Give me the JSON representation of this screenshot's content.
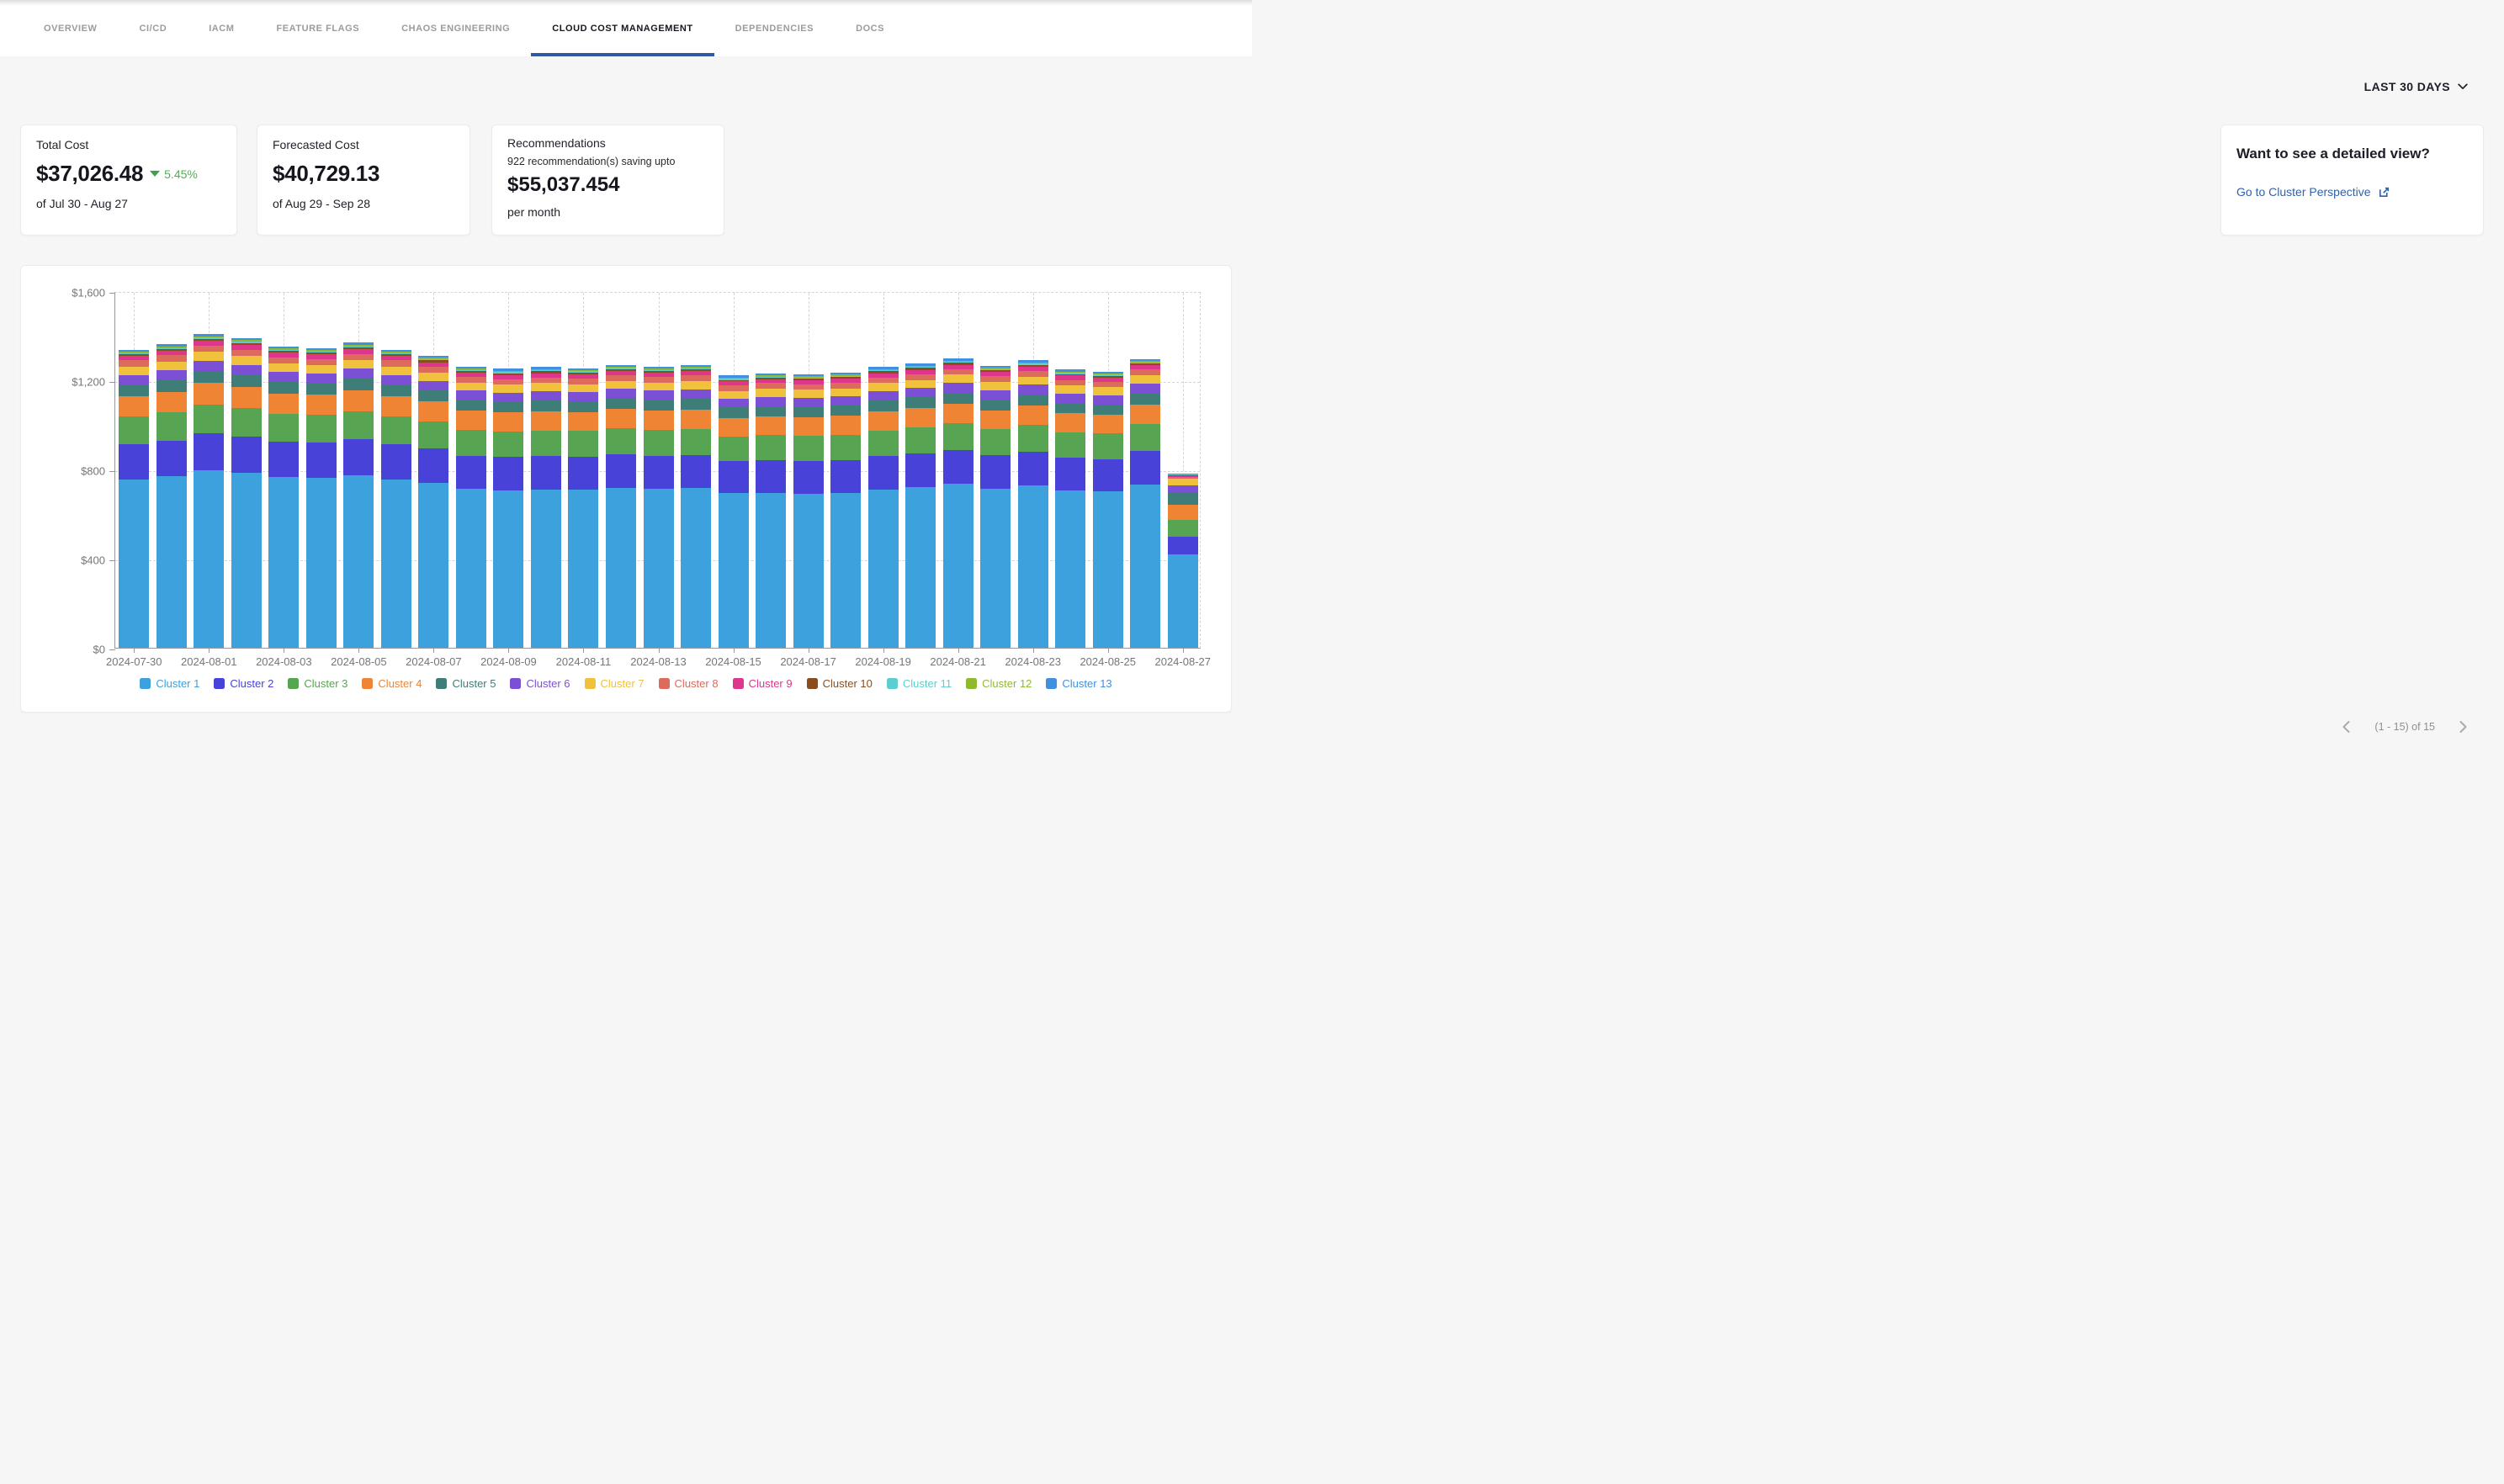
{
  "tabs": {
    "items": [
      {
        "label": "OVERVIEW",
        "active": false
      },
      {
        "label": "CI/CD",
        "active": false
      },
      {
        "label": "IACM",
        "active": false
      },
      {
        "label": "FEATURE FLAGS",
        "active": false
      },
      {
        "label": "CHAOS ENGINEERING",
        "active": false
      },
      {
        "label": "CLOUD COST MANAGEMENT",
        "active": true
      },
      {
        "label": "DEPENDENCIES",
        "active": false
      },
      {
        "label": "DOCS",
        "active": false
      }
    ]
  },
  "time_range": {
    "label": "LAST 30 DAYS"
  },
  "cards": {
    "total_cost": {
      "title": "Total Cost",
      "value": "$37,026.48",
      "delta": "5.45%",
      "delta_direction": "down",
      "delta_color": "#3da04e",
      "period": "of Jul 30 - Aug 27"
    },
    "forecasted_cost": {
      "title": "Forecasted Cost",
      "value": "$40,729.13",
      "period": "of Aug 29 - Sep 28"
    },
    "recommendations": {
      "title": "Recommendations",
      "subtitle": "922 recommendation(s) saving upto",
      "value": "$55,037.454",
      "suffix": "per month"
    },
    "detail_view": {
      "title": "Want to see a detailed view?",
      "link_label": "Go to Cluster Perspective",
      "link_icon": "external-link-icon",
      "link_color": "#2f62ad"
    }
  },
  "pagination": {
    "label": "(1 - 15) of 15"
  },
  "theme": {
    "active_tab_underline": "#2f5aa3",
    "page_background": "#f6f6f7",
    "card_background": "#ffffff",
    "axis_color": "#97989b",
    "grid_color": "#d5d5d5",
    "axis_label_color": "#75767a"
  },
  "chart_data": {
    "type": "bar",
    "stacked": true,
    "title": "",
    "xlabel": "",
    "ylabel": "",
    "ylim": [
      0,
      1600
    ],
    "grid": "dashed",
    "legend_position": "bottom",
    "y_tick_labels": [
      "$0",
      "$400",
      "$800",
      "$1,200",
      "$1,600"
    ],
    "x": [
      "2024-07-30",
      "2024-07-31",
      "2024-08-01",
      "2024-08-02",
      "2024-08-03",
      "2024-08-04",
      "2024-08-05",
      "2024-08-06",
      "2024-08-07",
      "2024-08-08",
      "2024-08-09",
      "2024-08-10",
      "2024-08-11",
      "2024-08-12",
      "2024-08-13",
      "2024-08-14",
      "2024-08-15",
      "2024-08-16",
      "2024-08-17",
      "2024-08-18",
      "2024-08-19",
      "2024-08-20",
      "2024-08-21",
      "2024-08-22",
      "2024-08-23",
      "2024-08-24",
      "2024-08-25",
      "2024-08-26",
      "2024-08-27"
    ],
    "x_tick_labels": [
      "2024-07-30",
      "2024-08-01",
      "2024-08-03",
      "2024-08-05",
      "2024-08-07",
      "2024-08-09",
      "2024-08-11",
      "2024-08-13",
      "2024-08-15",
      "2024-08-17",
      "2024-08-19",
      "2024-08-21",
      "2024-08-23",
      "2024-08-25",
      "2024-08-27"
    ],
    "series": [
      {
        "name": "Cluster 1",
        "color": "#3ca1dd",
        "values": [
          756,
          769,
          795,
          784,
          765,
          761,
          774,
          756,
          739,
          712,
          707,
          710,
          710,
          718,
          712,
          716,
          693,
          696,
          692,
          696,
          710,
          721,
          735,
          715,
          729,
          706,
          701,
          732,
          420
        ]
      },
      {
        "name": "Cluster 2",
        "color": "#4842d8",
        "values": [
          158,
          161,
          166,
          164,
          160,
          159,
          162,
          158,
          155,
          149,
          148,
          149,
          148,
          150,
          149,
          150,
          144,
          145,
          145,
          146,
          149,
          150,
          153,
          149,
          152,
          147,
          146,
          153,
          79
        ]
      },
      {
        "name": "Cluster 3",
        "color": "#57a452",
        "values": [
          123,
          125,
          130,
          128,
          124,
          124,
          126,
          123,
          121,
          116,
          115,
          116,
          115,
          117,
          116,
          117,
          112,
          113,
          113,
          114,
          116,
          117,
          119,
          116,
          119,
          115,
          114,
          119,
          73
        ]
      },
      {
        "name": "Cluster 4",
        "color": "#ee8434",
        "values": [
          91,
          93,
          96,
          95,
          92,
          91,
          93,
          91,
          89,
          86,
          85,
          86,
          85,
          86,
          86,
          86,
          83,
          84,
          84,
          84,
          86,
          87,
          88,
          86,
          88,
          85,
          84,
          88,
          68
        ]
      },
      {
        "name": "Cluster 5",
        "color": "#3f7e78",
        "values": [
          51,
          52,
          54,
          53,
          51,
          51,
          52,
          51,
          50,
          48,
          48,
          48,
          48,
          48,
          48,
          48,
          46,
          47,
          47,
          47,
          48,
          48,
          49,
          48,
          49,
          47,
          47,
          49,
          53
        ]
      },
      {
        "name": "Cluster 6",
        "color": "#7c50d4",
        "values": [
          44,
          45,
          46,
          46,
          45,
          44,
          45,
          44,
          43,
          42,
          41,
          42,
          41,
          42,
          42,
          42,
          40,
          41,
          41,
          41,
          42,
          42,
          43,
          42,
          43,
          41,
          41,
          43,
          37
        ]
      },
      {
        "name": "Cluster 7",
        "color": "#f0c13c",
        "values": [
          39,
          40,
          41,
          40,
          39,
          39,
          40,
          39,
          38,
          37,
          36,
          37,
          36,
          37,
          37,
          37,
          35,
          36,
          36,
          36,
          37,
          37,
          38,
          37,
          37,
          36,
          36,
          38,
          28
        ]
      },
      {
        "name": "Cluster 8",
        "color": "#dc6a5d",
        "values": [
          27,
          27,
          28,
          28,
          27,
          27,
          27,
          27,
          26,
          25,
          25,
          25,
          25,
          25,
          25,
          25,
          24,
          25,
          25,
          25,
          25,
          26,
          26,
          25,
          26,
          25,
          25,
          26,
          8
        ]
      },
      {
        "name": "Cluster 9",
        "color": "#de368c",
        "values": [
          20,
          20,
          21,
          21,
          20,
          20,
          21,
          20,
          20,
          19,
          19,
          19,
          19,
          19,
          19,
          19,
          18,
          18,
          18,
          19,
          19,
          19,
          19,
          19,
          19,
          19,
          19,
          19,
          5
        ]
      },
      {
        "name": "Cluster 10",
        "color": "#8a4d1e",
        "values": [
          8,
          8,
          8,
          8,
          8,
          8,
          8,
          8,
          8,
          8,
          8,
          8,
          8,
          8,
          8,
          8,
          7,
          7,
          7,
          7,
          8,
          8,
          8,
          8,
          8,
          7,
          7,
          8,
          3
        ]
      },
      {
        "name": "Cluster 11",
        "color": "#5bcfd0",
        "values": [
          5,
          5,
          6,
          6,
          5,
          5,
          5,
          5,
          5,
          5,
          5,
          5,
          5,
          5,
          5,
          5,
          5,
          5,
          5,
          5,
          5,
          5,
          5,
          5,
          5,
          5,
          5,
          5,
          3
        ]
      },
      {
        "name": "Cluster 12",
        "color": "#8fba30",
        "values": [
          7,
          7,
          7,
          7,
          7,
          7,
          7,
          7,
          7,
          6,
          6,
          6,
          6,
          6,
          6,
          6,
          6,
          6,
          6,
          6,
          6,
          6,
          6,
          6,
          6,
          6,
          6,
          6,
          1
        ]
      },
      {
        "name": "Cluster 13",
        "color": "#4190e0",
        "values": [
          9,
          10,
          10,
          10,
          9,
          9,
          10,
          9,
          9,
          9,
          9,
          9,
          9,
          9,
          9,
          9,
          9,
          9,
          9,
          9,
          9,
          9,
          9,
          9,
          9,
          9,
          9,
          9,
          2
        ]
      }
    ]
  }
}
